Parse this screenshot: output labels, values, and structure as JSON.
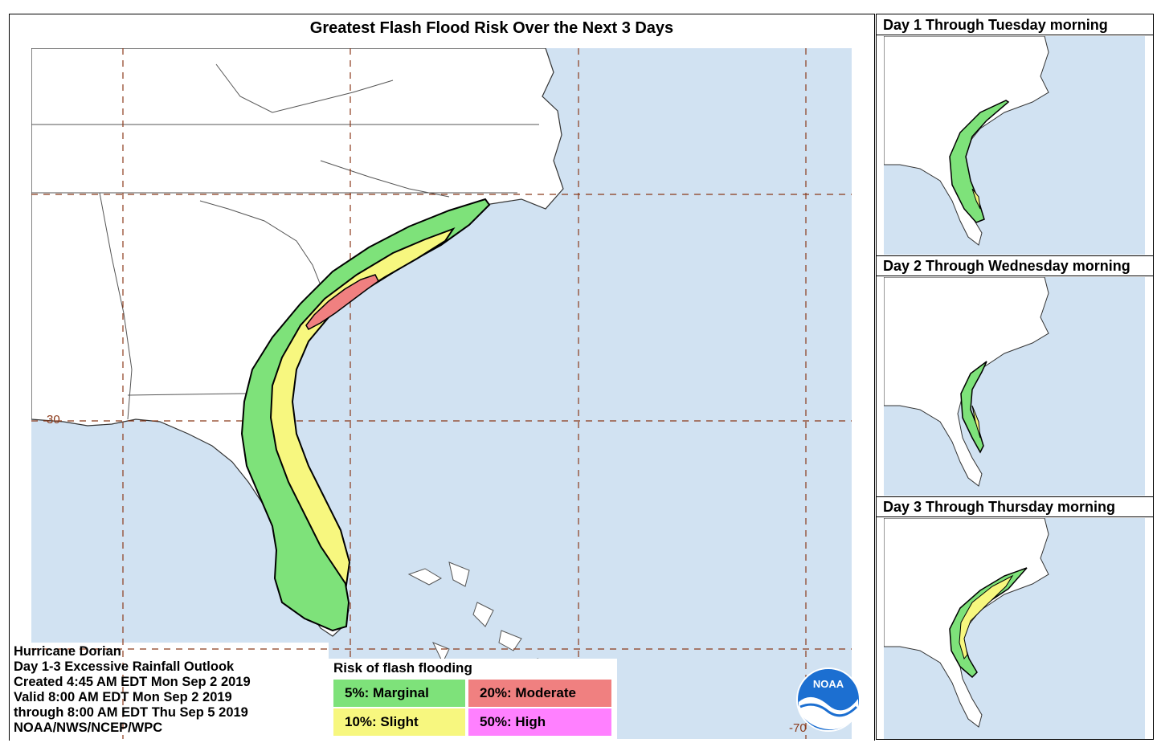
{
  "main_map": {
    "title": "Greatest Flash Flood Risk Over the Next 3 Days",
    "lat_label": "30",
    "lon_label": "-70"
  },
  "info": {
    "storm_name": "Hurricane Dorian",
    "product": "Day 1-3 Excessive Rainfall Outlook",
    "created": "Created 4:45 AM EDT Mon Sep 2 2019",
    "valid": "Valid 8:00 AM EDT Mon Sep 2 2019",
    "through": "through 8:00 AM EDT Thu Sep 5 2019",
    "agency": "NOAA/NWS/NCEP/WPC"
  },
  "legend": {
    "title": "Risk of flash flooding",
    "items": [
      {
        "label": "5%: Marginal",
        "color": "#7ee27a"
      },
      {
        "label": "20%: Moderate",
        "color": "#f08080"
      },
      {
        "label": "10%: Slight",
        "color": "#f7f77f"
      },
      {
        "label": "50%: High",
        "color": "#ff80ff"
      }
    ]
  },
  "panels": [
    {
      "title": "Day 1 Through Tuesday morning"
    },
    {
      "title": "Day 2 Through Wednesday morning"
    },
    {
      "title": "Day 3 Through Thursday morning"
    }
  ],
  "logo": {
    "text": "NOAA"
  },
  "colors": {
    "ocean": "#d1e2f2",
    "land": "#ffffff",
    "marginal": "#7ee27a",
    "slight": "#f7f77f",
    "moderate": "#f08080",
    "high": "#ff80ff",
    "grid": "#8b3a1a"
  }
}
